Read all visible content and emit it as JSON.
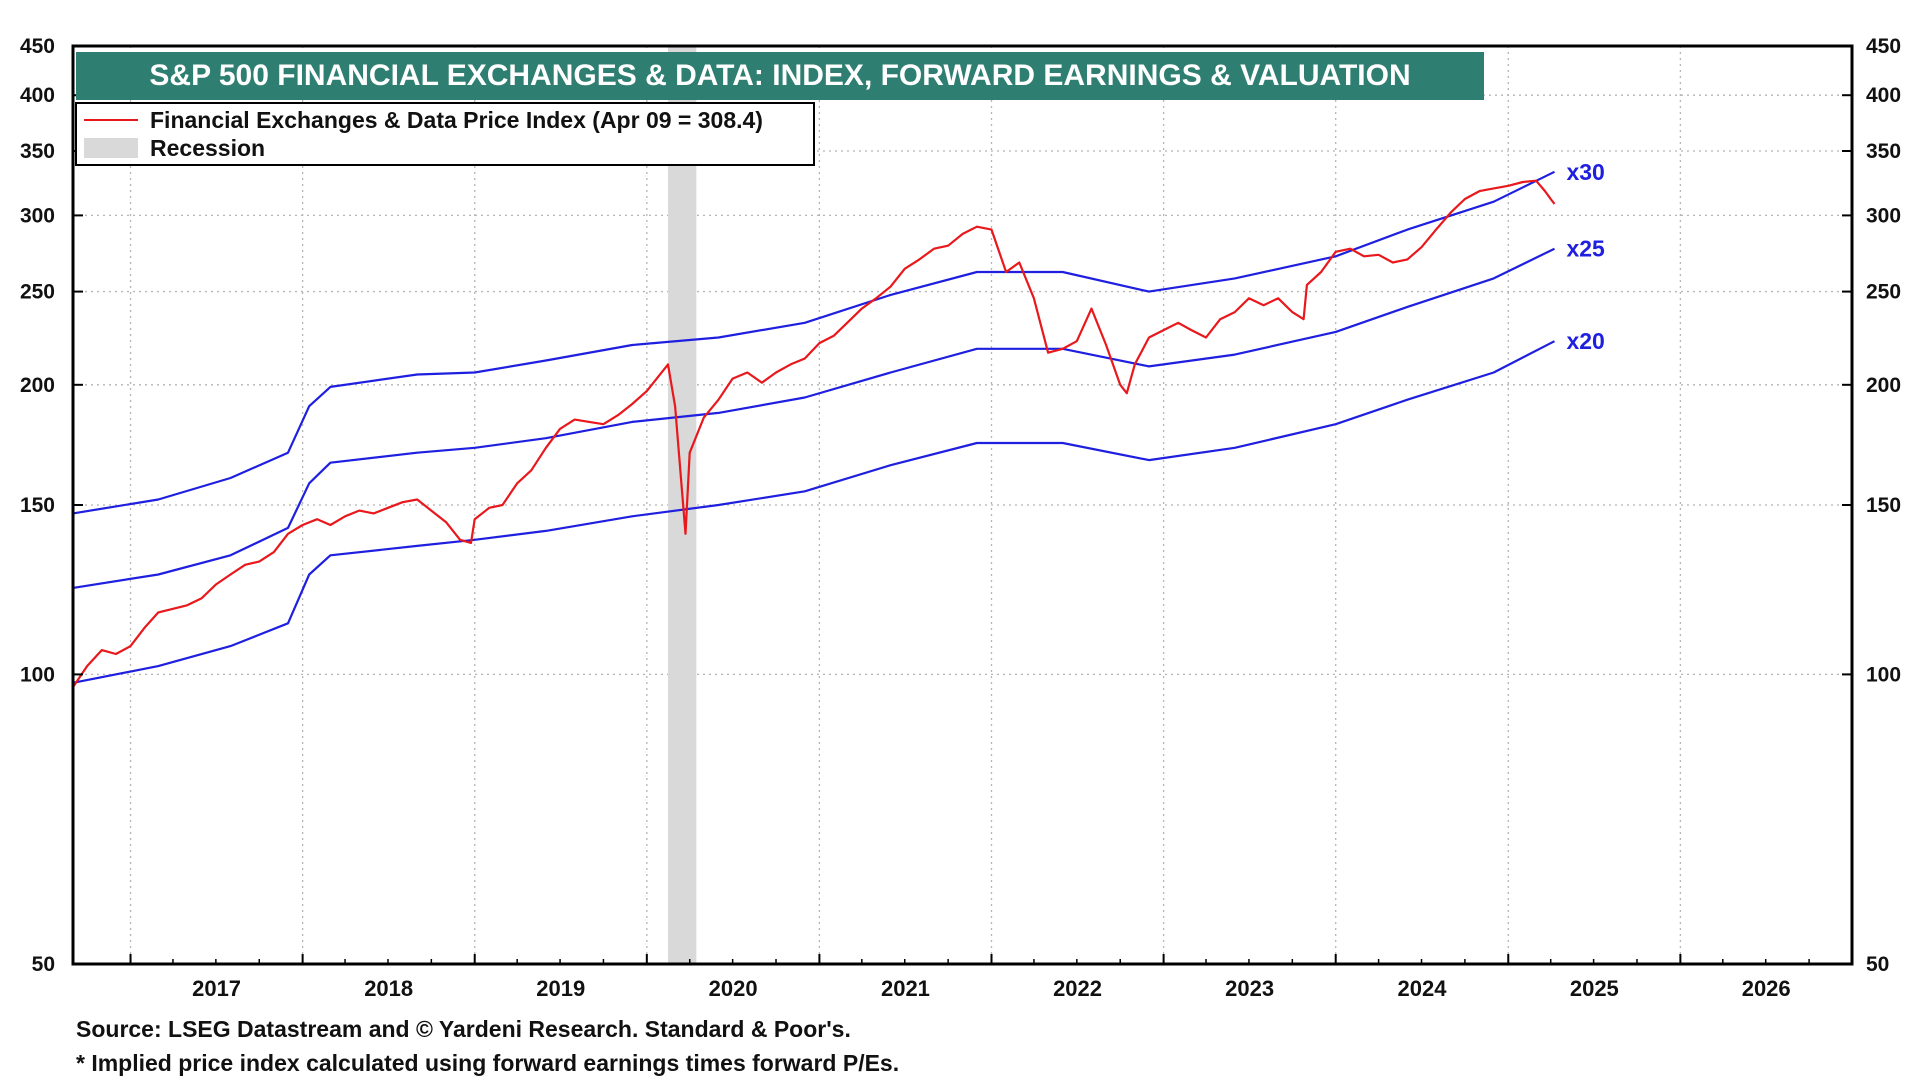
{
  "chart_data": {
    "type": "line",
    "title": "S&P 500 FINANCIAL EXCHANGES & DATA: INDEX, FORWARD EARNINGS & VALUATION",
    "y_scale": "log",
    "ylim": [
      50,
      450
    ],
    "y_ticks": [
      50,
      100,
      150,
      200,
      250,
      300,
      350,
      400,
      450
    ],
    "xlim": [
      "2016-09-01",
      "2026-12-31"
    ],
    "x_tick_labels": [
      "2017",
      "2018",
      "2019",
      "2020",
      "2021",
      "2022",
      "2023",
      "2024",
      "2025",
      "2026"
    ],
    "grid": true,
    "legend_position": "top-left",
    "legend": [
      {
        "label": "Financial Exchanges & Data Price Index (Apr 09 = 308.4)",
        "color": "#e8181c",
        "kind": "line"
      },
      {
        "label": "Recession",
        "color": "#d9d9d9",
        "kind": "box"
      }
    ],
    "recession": {
      "start": "2020-02-15",
      "end": "2020-04-15",
      "color": "#d9d9d9"
    },
    "series": [
      {
        "name": "Financial Exchanges & Data Price Index (Apr 09 = 308.4)",
        "color": "#e8181c",
        "x": [
          "2016-09-01",
          "2016-10-01",
          "2016-11-01",
          "2016-12-01",
          "2017-01-01",
          "2017-02-01",
          "2017-03-01",
          "2017-04-01",
          "2017-05-01",
          "2017-06-01",
          "2017-07-01",
          "2017-08-01",
          "2017-09-01",
          "2017-10-01",
          "2017-11-01",
          "2017-12-01",
          "2018-01-01",
          "2018-02-01",
          "2018-03-01",
          "2018-04-01",
          "2018-05-01",
          "2018-06-01",
          "2018-07-01",
          "2018-08-01",
          "2018-09-01",
          "2018-10-01",
          "2018-11-01",
          "2018-12-01",
          "2018-12-24",
          "2019-01-01",
          "2019-02-01",
          "2019-03-01",
          "2019-04-01",
          "2019-05-01",
          "2019-06-01",
          "2019-07-01",
          "2019-08-01",
          "2019-09-01",
          "2019-10-01",
          "2019-11-01",
          "2019-12-01",
          "2020-01-01",
          "2020-02-15",
          "2020-03-01",
          "2020-03-23",
          "2020-04-01",
          "2020-05-01",
          "2020-06-01",
          "2020-07-01",
          "2020-08-01",
          "2020-09-01",
          "2020-10-01",
          "2020-11-01",
          "2020-12-01",
          "2021-01-01",
          "2021-02-01",
          "2021-03-01",
          "2021-04-01",
          "2021-05-01",
          "2021-06-01",
          "2021-07-01",
          "2021-08-01",
          "2021-09-01",
          "2021-10-01",
          "2021-11-01",
          "2021-12-01",
          "2022-01-01",
          "2022-02-01",
          "2022-03-01",
          "2022-04-01",
          "2022-05-01",
          "2022-06-01",
          "2022-07-01",
          "2022-08-01",
          "2022-09-01",
          "2022-10-01",
          "2022-10-15",
          "2022-11-01",
          "2022-12-01",
          "2023-01-01",
          "2023-02-01",
          "2023-03-01",
          "2023-04-01",
          "2023-05-01",
          "2023-06-01",
          "2023-07-01",
          "2023-08-01",
          "2023-09-01",
          "2023-10-01",
          "2023-10-25",
          "2023-11-01",
          "2023-12-01",
          "2024-01-01",
          "2024-02-01",
          "2024-03-01",
          "2024-04-01",
          "2024-05-01",
          "2024-06-01",
          "2024-07-01",
          "2024-08-01",
          "2024-09-01",
          "2024-10-01",
          "2024-11-01",
          "2024-12-01",
          "2025-01-01",
          "2025-02-01",
          "2025-03-01",
          "2025-03-20",
          "2025-04-01",
          "2025-04-09"
        ],
        "values": [
          97,
          102,
          106,
          105,
          107,
          112,
          116,
          117,
          118,
          120,
          124,
          127,
          130,
          131,
          134,
          140,
          143,
          145,
          143,
          146,
          148,
          147,
          149,
          151,
          152,
          148,
          144,
          138,
          137,
          145,
          149,
          150,
          158,
          163,
          172,
          180,
          184,
          183,
          182,
          186,
          191,
          197,
          210,
          190,
          140,
          170,
          185,
          193,
          203,
          206,
          201,
          206,
          210,
          213,
          221,
          225,
          232,
          240,
          246,
          253,
          264,
          270,
          277,
          279,
          287,
          292,
          290,
          262,
          268,
          246,
          216,
          218,
          222,
          240,
          220,
          200,
          196,
          210,
          224,
          228,
          232,
          228,
          224,
          234,
          238,
          246,
          242,
          246,
          238,
          234,
          254,
          262,
          275,
          277,
          272,
          273,
          268,
          270,
          278,
          290,
          302,
          312,
          318,
          320,
          322,
          325,
          326,
          318,
          312,
          308.4
        ]
      },
      {
        "name": "x30",
        "color": "#1f1fe0",
        "x": [
          "2016-09-01",
          "2017-03-01",
          "2017-08-01",
          "2017-12-01",
          "2018-01-15",
          "2018-03-01",
          "2018-09-01",
          "2019-01-01",
          "2019-06-01",
          "2019-12-01",
          "2020-06-01",
          "2020-12-01",
          "2021-06-01",
          "2021-12-01",
          "2022-06-01",
          "2022-12-01",
          "2023-06-01",
          "2024-01-01",
          "2024-06-01",
          "2024-12-01",
          "2025-04-09"
        ],
        "values": [
          147,
          152,
          160,
          170,
          190,
          199,
          205,
          206,
          212,
          220,
          224,
          232,
          248,
          262,
          262,
          250,
          258,
          272,
          290,
          310,
          333
        ]
      },
      {
        "name": "x25",
        "color": "#1f1fe0",
        "x": [
          "2016-09-01",
          "2017-03-01",
          "2017-08-01",
          "2017-12-01",
          "2018-01-15",
          "2018-03-01",
          "2018-09-01",
          "2019-01-01",
          "2019-06-01",
          "2019-12-01",
          "2020-06-01",
          "2020-12-01",
          "2021-06-01",
          "2021-12-01",
          "2022-06-01",
          "2022-12-01",
          "2023-06-01",
          "2024-01-01",
          "2024-06-01",
          "2024-12-01",
          "2025-04-09"
        ],
        "values": [
          123,
          127,
          133,
          142,
          158,
          166,
          170,
          172,
          176,
          183,
          187,
          194,
          206,
          218,
          218,
          209,
          215,
          227,
          241,
          258,
          277
        ]
      },
      {
        "name": "x20",
        "color": "#1f1fe0",
        "x": [
          "2016-09-01",
          "2017-03-01",
          "2017-08-01",
          "2017-12-01",
          "2018-01-15",
          "2018-03-01",
          "2018-09-01",
          "2019-01-01",
          "2019-06-01",
          "2019-12-01",
          "2020-06-01",
          "2020-12-01",
          "2021-06-01",
          "2021-12-01",
          "2022-06-01",
          "2022-12-01",
          "2023-06-01",
          "2024-01-01",
          "2024-06-01",
          "2024-12-01",
          "2025-04-09"
        ],
        "values": [
          98,
          102,
          107,
          113,
          127,
          133,
          136,
          138,
          141,
          146,
          150,
          155,
          165,
          174,
          174,
          167,
          172,
          182,
          193,
          206,
          222
        ]
      }
    ],
    "multiple_labels": [
      {
        "text": "x30",
        "series": "x30"
      },
      {
        "text": "x25",
        "series": "x25"
      },
      {
        "text": "x20",
        "series": "x20"
      }
    ]
  },
  "footer": {
    "source": "Source: LSEG Datastream and © Yardeni Research. Standard & Poor's.",
    "note": "* Implied price index calculated using forward earnings times forward P/Es."
  }
}
